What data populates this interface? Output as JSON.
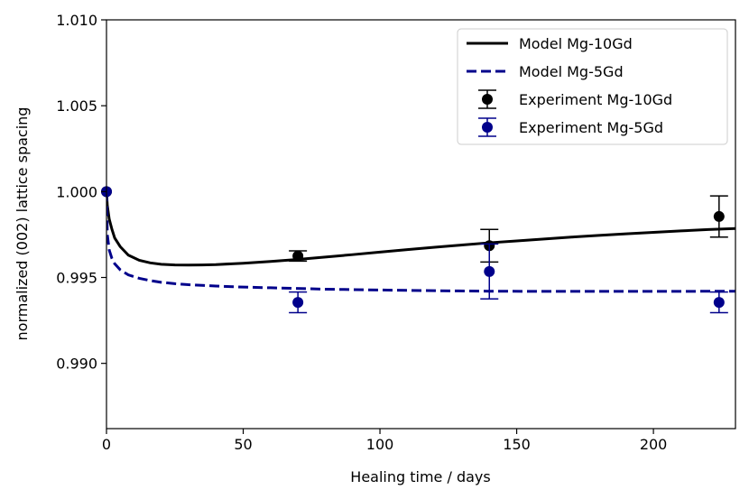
{
  "chart_data": {
    "type": "line",
    "title": "",
    "xlabel": "Healing time / days",
    "ylabel": "normalized (002) lattice spacing",
    "xlim": [
      0,
      230
    ],
    "ylim": [
      0.9862,
      1.01
    ],
    "xticks": [
      0,
      50,
      100,
      150,
      200
    ],
    "xtick_labels": [
      "0",
      "50",
      "100",
      "150",
      "200"
    ],
    "yticks": [
      0.99,
      0.995,
      1.0,
      1.005,
      1.01
    ],
    "ytick_labels": [
      "0.990",
      "0.995",
      "1.000",
      "1.005",
      "1.010"
    ],
    "grid": false,
    "legend_position": "top-right",
    "series": [
      {
        "name": "Model Mg-10Gd",
        "kind": "line",
        "style": "solid",
        "color": "#000000",
        "x": [
          0,
          0.3,
          1,
          2,
          3,
          5,
          8,
          12,
          16,
          20,
          25,
          30,
          35,
          40,
          50,
          60,
          70,
          80,
          90,
          100,
          110,
          120,
          130,
          140,
          150,
          160,
          170,
          180,
          190,
          200,
          210,
          220,
          230
        ],
        "y": [
          1.0,
          0.9992,
          0.9984,
          0.9978,
          0.9973,
          0.9968,
          0.9963,
          0.996,
          0.99585,
          0.99577,
          0.99573,
          0.99572,
          0.99573,
          0.99575,
          0.99583,
          0.99593,
          0.99605,
          0.99619,
          0.99633,
          0.99648,
          0.99662,
          0.99676,
          0.99689,
          0.99702,
          0.99713,
          0.99724,
          0.99735,
          0.99745,
          0.99754,
          0.99763,
          0.99771,
          0.99779,
          0.99785
        ]
      },
      {
        "name": "Model Mg-5Gd",
        "kind": "line",
        "style": "dashed",
        "color": "#00008b",
        "x": [
          0,
          0.3,
          1,
          2,
          3,
          5,
          8,
          12,
          16,
          20,
          25,
          30,
          40,
          50,
          60,
          80,
          100,
          120,
          140,
          160,
          180,
          200,
          230
        ],
        "y": [
          1.0,
          0.9975,
          0.9966,
          0.9961,
          0.9958,
          0.99545,
          0.99515,
          0.99495,
          0.99482,
          0.99472,
          0.99464,
          0.99458,
          0.9945,
          0.99444,
          0.9944,
          0.99432,
          0.99427,
          0.99423,
          0.9942,
          0.99419,
          0.99419,
          0.99419,
          0.9942
        ]
      },
      {
        "name": "Experiment Mg-10Gd",
        "kind": "errorbar",
        "color": "#000000",
        "x": [
          0,
          70,
          140,
          224
        ],
        "y": [
          1.0,
          0.99625,
          0.99685,
          0.99855
        ],
        "yerr": [
          0,
          0.0003,
          0.00095,
          0.0012
        ]
      },
      {
        "name": "Experiment Mg-5Gd",
        "kind": "errorbar",
        "color": "#00008b",
        "x": [
          0,
          70,
          140,
          224
        ],
        "y": [
          1.0,
          0.99355,
          0.99535,
          0.99355
        ],
        "yerr": [
          0,
          0.0006,
          0.0016,
          0.0006
        ]
      }
    ]
  }
}
